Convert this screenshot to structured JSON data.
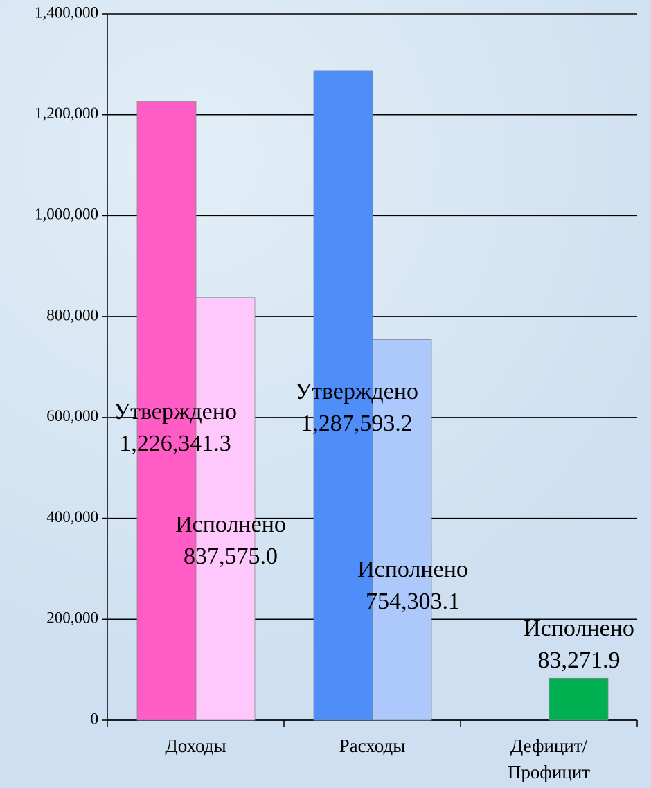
{
  "chart_data": {
    "type": "bar",
    "categories": [
      "Доходы",
      "Расходы",
      "Дефицит/\nПрофицит"
    ],
    "series": [
      {
        "name": "Утверждено",
        "colors": [
          "#ff5cc6",
          "#4f8ef9",
          null
        ],
        "values": [
          1226341.3,
          1287593.2,
          null
        ],
        "value_labels": [
          "1,226,341.3",
          "1,287,593.2",
          null
        ]
      },
      {
        "name": "Исполнено",
        "colors": [
          "#ffc8fc",
          "#adc8fb",
          "#00b050"
        ],
        "values": [
          837575.0,
          754303.1,
          83271.9
        ],
        "value_labels": [
          "837,575.0",
          "754,303.1",
          "83,271.9"
        ]
      }
    ],
    "ylim": [
      0,
      1400000
    ],
    "yticks": [
      0,
      {
        "value": 200000,
        "label": "200,000"
      },
      {
        "value": 400000,
        "label": "400,000"
      },
      {
        "value": 600000,
        "label": "600,000"
      },
      {
        "value": 800000,
        "label": "800,000"
      },
      {
        "value": 1000000,
        "label": "1,000,000"
      },
      {
        "value": 1200000,
        "label": "1,200,000"
      },
      {
        "value": 1400000,
        "label": "1,400,000"
      }
    ],
    "grid": true
  }
}
